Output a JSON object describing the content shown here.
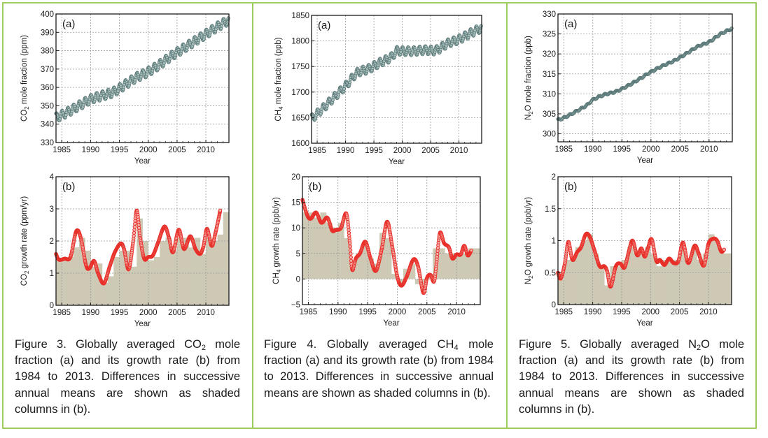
{
  "colors": {
    "border": "#9ccc5e",
    "series_a_marker": "#5d7a7a",
    "series_a_line": "#c04040",
    "growth_curve": "#e8302a",
    "bar_fill": "#cdc9b4",
    "grid": "#9a9a9a"
  },
  "figures": [
    {
      "id": "co2",
      "caption": {
        "prefix": "Figure 3. Globally averaged CO",
        "sub": "2",
        "suffix": " mole fraction (a) and its growth rate (b) from 1984 to 2013. Differences in successive annual means are shown as shaded columns in (b)."
      }
    },
    {
      "id": "ch4",
      "caption": {
        "prefix": "Figure 4. Globally averaged CH",
        "sub": "4",
        "suffix": " mole fraction (a) and its growth rate (b) from 1984 to 2013. Differences in successive annual means are shown as shaded columns in (b)."
      }
    },
    {
      "id": "n2o",
      "caption": {
        "prefix": "Figure 5. Globally averaged N",
        "sub": "2",
        "suffix": "O mole fraction (a) and its growth rate (b) from 1984 to 2013. Differences in successive annual means are shown as shaded columns in (b)."
      }
    }
  ],
  "chart_data": [
    {
      "id": "co2-a",
      "type": "line",
      "title": "(a)",
      "xlabel": "Year",
      "ylabel_prefix": "CO",
      "ylabel_sub": "2",
      "ylabel_suffix": " mole fraction (ppm)",
      "xlim": [
        1984,
        2014
      ],
      "ylim": [
        330,
        400
      ],
      "xticks": [
        1985,
        1990,
        1995,
        2000,
        2005,
        2010
      ],
      "yticks": [
        330,
        340,
        350,
        360,
        370,
        380,
        390,
        400
      ],
      "grid": true,
      "seasonal_amplitude": 2.4,
      "x": [
        1984,
        1986,
        1988,
        1990,
        1992,
        1994,
        1996,
        1998,
        2000,
        2002,
        2004,
        2006,
        2008,
        2010,
        2012,
        2013.9
      ],
      "y": [
        343.5,
        346.5,
        350.0,
        353.5,
        355.5,
        357.5,
        361.5,
        365.5,
        368.5,
        372.5,
        377.0,
        381.0,
        385.0,
        389.0,
        393.0,
        396.5
      ]
    },
    {
      "id": "co2-b",
      "type": "bar+line",
      "title": "(b)",
      "xlabel": "Year",
      "ylabel_prefix": "CO",
      "ylabel_sub": "2",
      "ylabel_suffix": " growth rate (ppm/yr)",
      "xlim": [
        1984,
        2014
      ],
      "ylim": [
        0,
        4
      ],
      "xticks": [
        1985,
        1990,
        1995,
        2000,
        2005,
        2010
      ],
      "yticks": [
        0,
        1,
        2,
        3,
        4
      ],
      "grid": true,
      "bar_years": [
        1984,
        1985,
        1986,
        1987,
        1988,
        1989,
        1990,
        1991,
        1992,
        1993,
        1994,
        1995,
        1996,
        1997,
        1998,
        1999,
        2000,
        2001,
        2002,
        2003,
        2004,
        2005,
        2006,
        2007,
        2008,
        2009,
        2010,
        2011,
        2012,
        2013
      ],
      "bar_values": [
        1.4,
        1.4,
        1.5,
        1.8,
        2.1,
        1.7,
        1.2,
        1.3,
        0.7,
        0.9,
        1.5,
        1.7,
        1.7,
        1.2,
        2.7,
        2.0,
        1.4,
        1.5,
        2.0,
        2.1,
        1.7,
        2.1,
        2.1,
        1.8,
        2.1,
        1.6,
        2.1,
        2.0,
        2.2,
        2.9
      ],
      "curve_x": [
        1984,
        1984.5,
        1985.5,
        1986.5,
        1987.5,
        1988.3,
        1989.2,
        1989.8,
        1990.6,
        1991.3,
        1992.3,
        1993.3,
        1994.2,
        1995.2,
        1995.8,
        1996.6,
        1997.4,
        1998.0,
        1998.6,
        1999.3,
        2000.0,
        2000.8,
        2001.7,
        2002.8,
        2003.6,
        2004.3,
        2005.3,
        2006.2,
        2007.3,
        2008.2,
        2009.0,
        2009.6,
        2010.2,
        2011.0,
        2011.6,
        2012.5
      ],
      "curve_y": [
        1.6,
        1.42,
        1.45,
        1.5,
        2.3,
        2.1,
        1.25,
        1.15,
        1.38,
        1.0,
        0.68,
        1.2,
        1.65,
        1.92,
        1.75,
        1.12,
        2.0,
        2.95,
        2.1,
        1.45,
        1.5,
        1.55,
        1.95,
        2.45,
        2.1,
        1.65,
        2.35,
        1.75,
        2.15,
        1.75,
        1.6,
        1.85,
        2.38,
        1.85,
        2.2,
        2.95
      ]
    },
    {
      "id": "ch4-a",
      "type": "line",
      "title": "(a)",
      "xlabel": "Year",
      "ylabel_prefix": "CH",
      "ylabel_sub": "4",
      "ylabel_suffix": " mole fraction (ppb)",
      "xlim": [
        1984,
        2014
      ],
      "ylim": [
        1600,
        1850
      ],
      "xticks": [
        1985,
        1990,
        1995,
        2000,
        2005,
        2010
      ],
      "yticks": [
        1600,
        1650,
        1700,
        1750,
        1800,
        1850
      ],
      "grid": true,
      "seasonal_amplitude": 8,
      "x": [
        1984,
        1986,
        1988,
        1990,
        1992,
        1994,
        1996,
        1998,
        1999,
        2000,
        2002,
        2004,
        2006,
        2008,
        2010,
        2012,
        2013.9
      ],
      "y": [
        1648,
        1668,
        1690,
        1712,
        1737,
        1745,
        1757,
        1768,
        1780,
        1780,
        1780,
        1782,
        1782,
        1795,
        1803,
        1815,
        1825
      ]
    },
    {
      "id": "ch4-b",
      "type": "bar+line",
      "title": "(b)",
      "xlabel": "Year",
      "ylabel_prefix": "CH",
      "ylabel_sub": "4",
      "ylabel_suffix": " growth rate (ppb/yr)",
      "xlim": [
        1984,
        2014
      ],
      "ylim": [
        -5,
        20
      ],
      "xticks": [
        1985,
        1990,
        1995,
        2000,
        2005,
        2010
      ],
      "yticks": [
        -5,
        0,
        5,
        10,
        15,
        20
      ],
      "grid": true,
      "bar_years": [
        1984,
        1985,
        1986,
        1987,
        1988,
        1989,
        1990,
        1991,
        1992,
        1993,
        1994,
        1995,
        1996,
        1997,
        1998,
        1999,
        2000,
        2001,
        2002,
        2003,
        2004,
        2005,
        2006,
        2007,
        2008,
        2009,
        2010,
        2011,
        2012,
        2013
      ],
      "bar_values": [
        13,
        13,
        12,
        13,
        11,
        10,
        11,
        8,
        2,
        5,
        7,
        4,
        3,
        9,
        8,
        1,
        -1,
        2,
        3,
        -1,
        -1,
        1,
        6,
        6,
        5,
        5,
        5,
        5,
        6,
        6
      ],
      "curve_x": [
        1984,
        1984.8,
        1985.4,
        1986.3,
        1987.2,
        1988.2,
        1989.0,
        1989.6,
        1990.5,
        1991.4,
        1992.0,
        1992.4,
        1993.0,
        1993.7,
        1994.6,
        1995.5,
        1996.4,
        1997.4,
        1998.3,
        1999.2,
        2000.0,
        2000.7,
        2001.6,
        2002.7,
        2003.5,
        2004.4,
        2005.0,
        2005.6,
        2006.2,
        2006.6,
        2007.2,
        2007.9,
        2008.7,
        2009.3,
        2010.0,
        2010.7,
        2011.3,
        2011.9,
        2012.5
      ],
      "curve_y": [
        15.5,
        12.5,
        11.8,
        13.0,
        11.0,
        12.0,
        9.5,
        9.6,
        10.0,
        12.8,
        7.0,
        1.8,
        4.0,
        5.0,
        7.3,
        4.0,
        1.6,
        6.0,
        11.2,
        6.0,
        0.5,
        -1.3,
        0.5,
        3.8,
        2.5,
        -2.7,
        0.2,
        0.8,
        -0.5,
        3.0,
        9.0,
        7.0,
        6.2,
        4.0,
        4.8,
        4.8,
        6.5,
        4.6,
        5.6
      ]
    },
    {
      "id": "n2o-a",
      "type": "line",
      "title": "(a)",
      "xlabel": "Year",
      "ylabel_prefix": "N",
      "ylabel_sub": "2",
      "ylabel_suffix": "O mole fraction (ppb)",
      "xlim": [
        1984,
        2014
      ],
      "ylim": [
        298,
        330
      ],
      "xticks": [
        1985,
        1990,
        1995,
        2000,
        2005,
        2010
      ],
      "yticks": [
        300,
        305,
        310,
        315,
        320,
        325,
        330
      ],
      "grid": true,
      "seasonal_amplitude": 0.2,
      "x": [
        1984,
        1985,
        1987,
        1989,
        1990,
        1992,
        1994,
        1996,
        1998,
        2000,
        2002,
        2004,
        2006,
        2008,
        2010,
        2012,
        2013.9
      ],
      "y": [
        303.5,
        304.0,
        305.5,
        307.2,
        308.5,
        309.8,
        310.6,
        312.0,
        313.7,
        315.5,
        317.0,
        318.3,
        320.0,
        321.8,
        323.0,
        325.0,
        326.3
      ]
    },
    {
      "id": "n2o-b",
      "type": "bar+line",
      "title": "(b)",
      "xlabel": "Year",
      "ylabel_prefix": "N",
      "ylabel_sub": "2",
      "ylabel_suffix": "O growth rate (ppb/yr)",
      "xlim": [
        1984,
        2014
      ],
      "ylim": [
        0,
        2
      ],
      "xticks": [
        1985,
        1990,
        1995,
        2000,
        2005,
        2010
      ],
      "yticks": [
        0,
        0.5,
        1,
        1.5,
        2
      ],
      "grid": true,
      "bar_years": [
        1984,
        1985,
        1986,
        1987,
        1988,
        1989,
        1990,
        1991,
        1992,
        1993,
        1994,
        1995,
        1996,
        1997,
        1998,
        1999,
        2000,
        2001,
        2002,
        2003,
        2004,
        2005,
        2006,
        2007,
        2008,
        2009,
        2010,
        2011,
        2012,
        2013
      ],
      "bar_values": [
        0.4,
        0.7,
        0.7,
        0.9,
        1.0,
        1.1,
        0.8,
        0.6,
        0.3,
        0.6,
        0.6,
        0.7,
        0.9,
        0.8,
        0.8,
        0.9,
        0.8,
        0.6,
        0.7,
        0.7,
        0.7,
        0.9,
        0.7,
        0.9,
        0.7,
        0.8,
        1.1,
        1.0,
        0.8,
        0.8
      ],
      "curve_x": [
        1984,
        1984.5,
        1985.2,
        1985.8,
        1986.5,
        1987.3,
        1988.0,
        1988.8,
        1989.5,
        1990.3,
        1991.2,
        1992.0,
        1992.5,
        1993.1,
        1994.0,
        1994.8,
        1995.5,
        1996.3,
        1996.9,
        1997.7,
        1998.4,
        1999.0,
        1999.6,
        2000.2,
        2001.0,
        2001.6,
        2002.4,
        2003.2,
        2004.0,
        2004.8,
        2005.6,
        2006.5,
        2007.6,
        2008.3,
        2009.2,
        2010.0,
        2010.8,
        2011.5,
        2012.2,
        2012.7
      ],
      "curve_y": [
        0.5,
        0.41,
        0.65,
        0.98,
        0.7,
        0.82,
        0.9,
        1.1,
        1.06,
        0.85,
        0.6,
        0.6,
        0.52,
        0.28,
        0.6,
        0.64,
        0.58,
        0.85,
        1.0,
        0.77,
        0.88,
        0.75,
        0.9,
        1.02,
        0.68,
        0.7,
        0.62,
        0.72,
        0.65,
        0.68,
        0.97,
        0.65,
        0.92,
        0.8,
        0.61,
        0.95,
        1.03,
        1.0,
        0.83,
        0.86
      ]
    }
  ]
}
